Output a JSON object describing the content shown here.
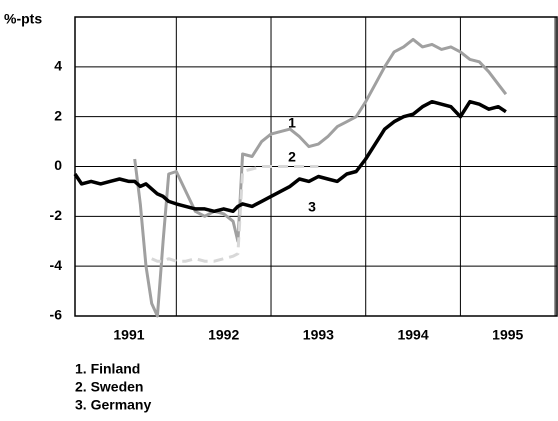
{
  "chart_data": {
    "type": "line",
    "y_label": "%-pts",
    "x": [
      1990.93,
      1991.0,
      1991.1,
      1991.2,
      1991.3,
      1991.4,
      1991.5,
      1991.56,
      1991.62,
      1991.68,
      1991.74,
      1991.8,
      1991.86,
      1991.92,
      1992.0,
      1992.1,
      1992.2,
      1992.3,
      1992.4,
      1992.5,
      1992.6,
      1992.65,
      1992.7,
      1992.8,
      1992.9,
      1993.0,
      1993.1,
      1993.2,
      1993.3,
      1993.4,
      1993.5,
      1993.6,
      1993.7,
      1993.8,
      1993.9,
      1994.0,
      1994.1,
      1994.2,
      1994.3,
      1994.4,
      1994.5,
      1994.6,
      1994.7,
      1994.8,
      1994.9,
      1995.0,
      1995.1,
      1995.2,
      1995.3,
      1995.4,
      1995.48
    ],
    "series": [
      {
        "name": "1. Finland",
        "line_label": "1",
        "color": "#a0a0a0",
        "dash": false,
        "values": [
          null,
          null,
          null,
          null,
          null,
          null,
          null,
          0.3,
          -1.5,
          -4.0,
          -5.5,
          -6.0,
          -3.0,
          -0.3,
          -0.2,
          -1.0,
          -1.8,
          -2.0,
          -1.8,
          -1.9,
          -2.2,
          -3.0,
          0.5,
          0.4,
          1.0,
          1.3,
          1.4,
          1.5,
          1.2,
          0.8,
          0.9,
          1.2,
          1.6,
          1.8,
          2.0,
          2.6,
          3.3,
          4.0,
          4.6,
          4.8,
          5.1,
          4.8,
          4.9,
          4.7,
          4.8,
          4.6,
          4.3,
          4.2,
          3.8,
          3.3,
          2.9
        ]
      },
      {
        "name": "2. Sweden",
        "line_label": "2",
        "color": "#d8d8d8",
        "dash": true,
        "values": [
          null,
          null,
          null,
          null,
          null,
          null,
          null,
          null,
          null,
          null,
          -3.7,
          -3.8,
          -3.8,
          -3.7,
          -3.8,
          -3.8,
          -3.7,
          -3.8,
          -3.8,
          -3.7,
          -3.6,
          -3.5,
          -0.2,
          -0.1,
          0.0,
          0.0,
          0.0,
          0.0,
          0.0,
          0.0,
          0.0,
          null,
          null,
          null,
          null,
          null,
          null,
          null,
          null,
          null,
          null,
          null,
          null,
          null,
          null,
          null,
          null,
          null,
          null,
          null,
          null
        ]
      },
      {
        "name": "3. Germany",
        "line_label": "3",
        "color": "#000000",
        "dash": false,
        "values": [
          -0.3,
          -0.7,
          -0.6,
          -0.7,
          -0.6,
          -0.5,
          -0.6,
          -0.6,
          -0.8,
          -0.7,
          -0.9,
          -1.1,
          -1.2,
          -1.4,
          -1.5,
          -1.6,
          -1.7,
          -1.7,
          -1.8,
          -1.7,
          -1.8,
          -1.6,
          -1.5,
          -1.6,
          -1.4,
          -1.2,
          -1.0,
          -0.8,
          -0.5,
          -0.6,
          -0.4,
          -0.5,
          -0.6,
          -0.3,
          -0.2,
          0.3,
          0.9,
          1.5,
          1.8,
          2.0,
          2.1,
          2.4,
          2.6,
          2.5,
          2.4,
          2.0,
          2.6,
          2.5,
          2.3,
          2.4,
          2.2
        ]
      }
    ],
    "xlim": [
      1990.93,
      1996.02
    ],
    "xticks": [
      {
        "value": 1991.5,
        "label": "1991"
      },
      {
        "value": 1992.5,
        "label": "1992"
      },
      {
        "value": 1993.5,
        "label": "1993"
      },
      {
        "value": 1994.5,
        "label": "1994"
      },
      {
        "value": 1995.5,
        "label": "1995"
      }
    ],
    "xgrid": [
      1992,
      1993,
      1994,
      1995,
      1996
    ],
    "ylim": [
      -6,
      6
    ],
    "yticks": [
      -6,
      -4,
      -2,
      0,
      2,
      4
    ],
    "grid": true
  }
}
